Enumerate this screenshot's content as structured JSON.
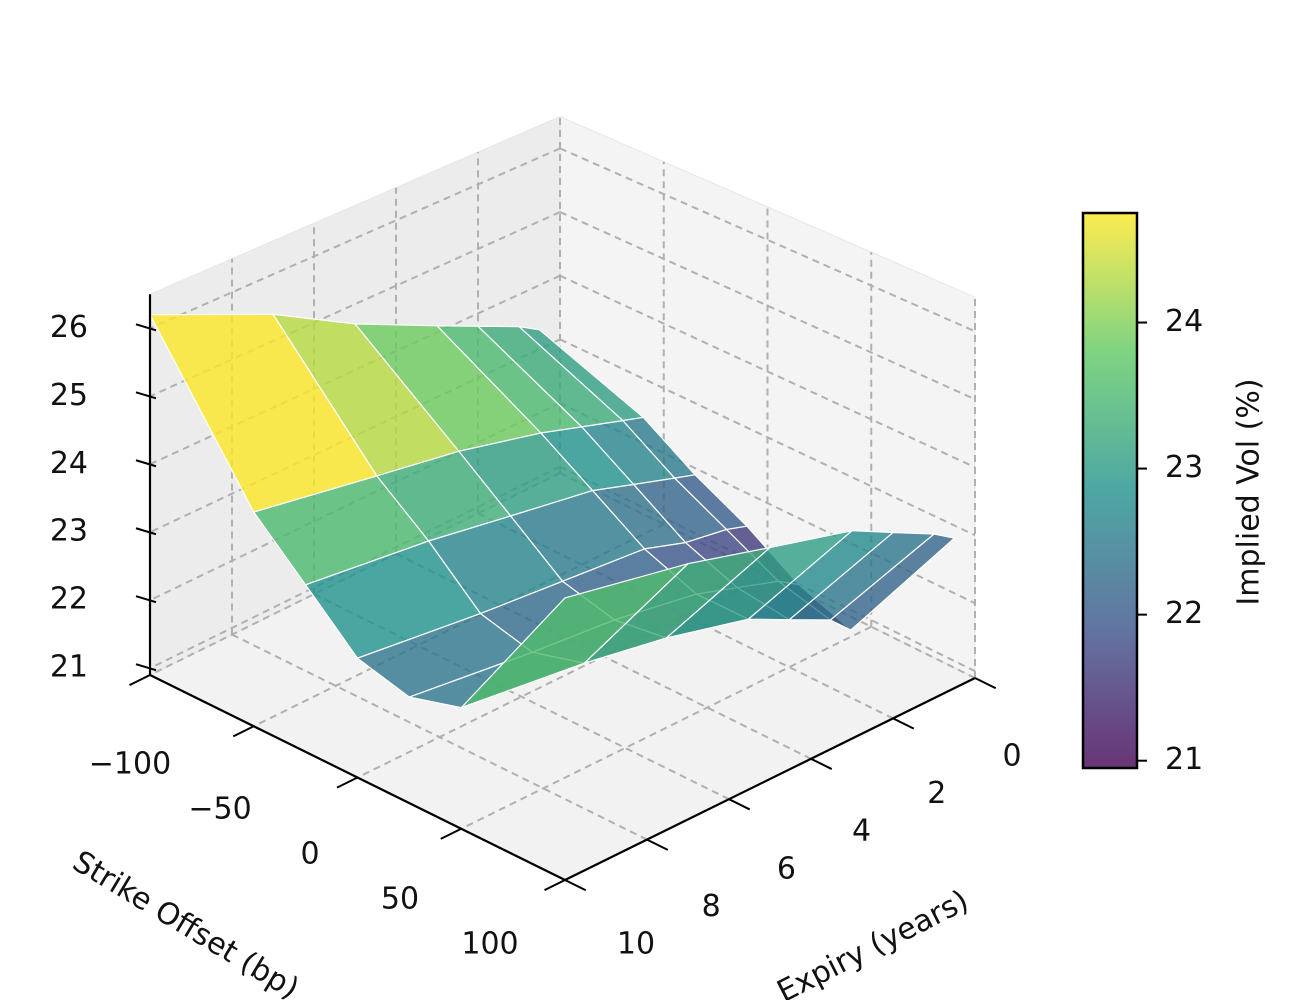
{
  "chart_data": {
    "type": "surface",
    "xlabel": "Strike Offset (bp)",
    "ylabel": "Expiry (years)",
    "colorbar_label": "Implied Vol (%)",
    "x": [
      -100,
      -50,
      -25,
      0,
      25,
      50,
      100
    ],
    "y": [
      0.5,
      1,
      2,
      3,
      5,
      7,
      10
    ],
    "z": [
      [
        23.3,
        23.5,
        23.8,
        24.1,
        24.7,
        25.4,
        26.2
      ],
      [
        22.7,
        22.8,
        23.0,
        23.2,
        23.5,
        23.7,
        24.0
      ],
      [
        22.2,
        22.3,
        22.5,
        22.7,
        22.9,
        23.1,
        23.3
      ],
      [
        21.8,
        21.9,
        22.0,
        22.2,
        22.3,
        22.4,
        22.6
      ],
      [
        21.3,
        21.5,
        21.7,
        21.9,
        22.1,
        22.2,
        22.4
      ],
      [
        21.0,
        21.3,
        21.6,
        21.9,
        22.2,
        22.4,
        22.6
      ],
      [
        23.1,
        23.3,
        23.6,
        23.9,
        24.2,
        24.5,
        24.8
      ]
    ],
    "xlim": [
      -100,
      100
    ],
    "ylim": [
      0,
      10
    ],
    "zlim": [
      20.9,
      26.5
    ],
    "xticks": [
      {
        "value": -100,
        "label": "−100"
      },
      {
        "value": -50,
        "label": "−50"
      },
      0,
      50,
      100
    ],
    "yticks": [
      0,
      2,
      4,
      6,
      8,
      10
    ],
    "zticks": [
      21,
      22,
      23,
      24,
      25,
      26
    ],
    "clim": [
      20.95,
      24.75
    ],
    "cticks": [
      21,
      22,
      23,
      24
    ],
    "colormap": "viridis",
    "grid": true
  }
}
